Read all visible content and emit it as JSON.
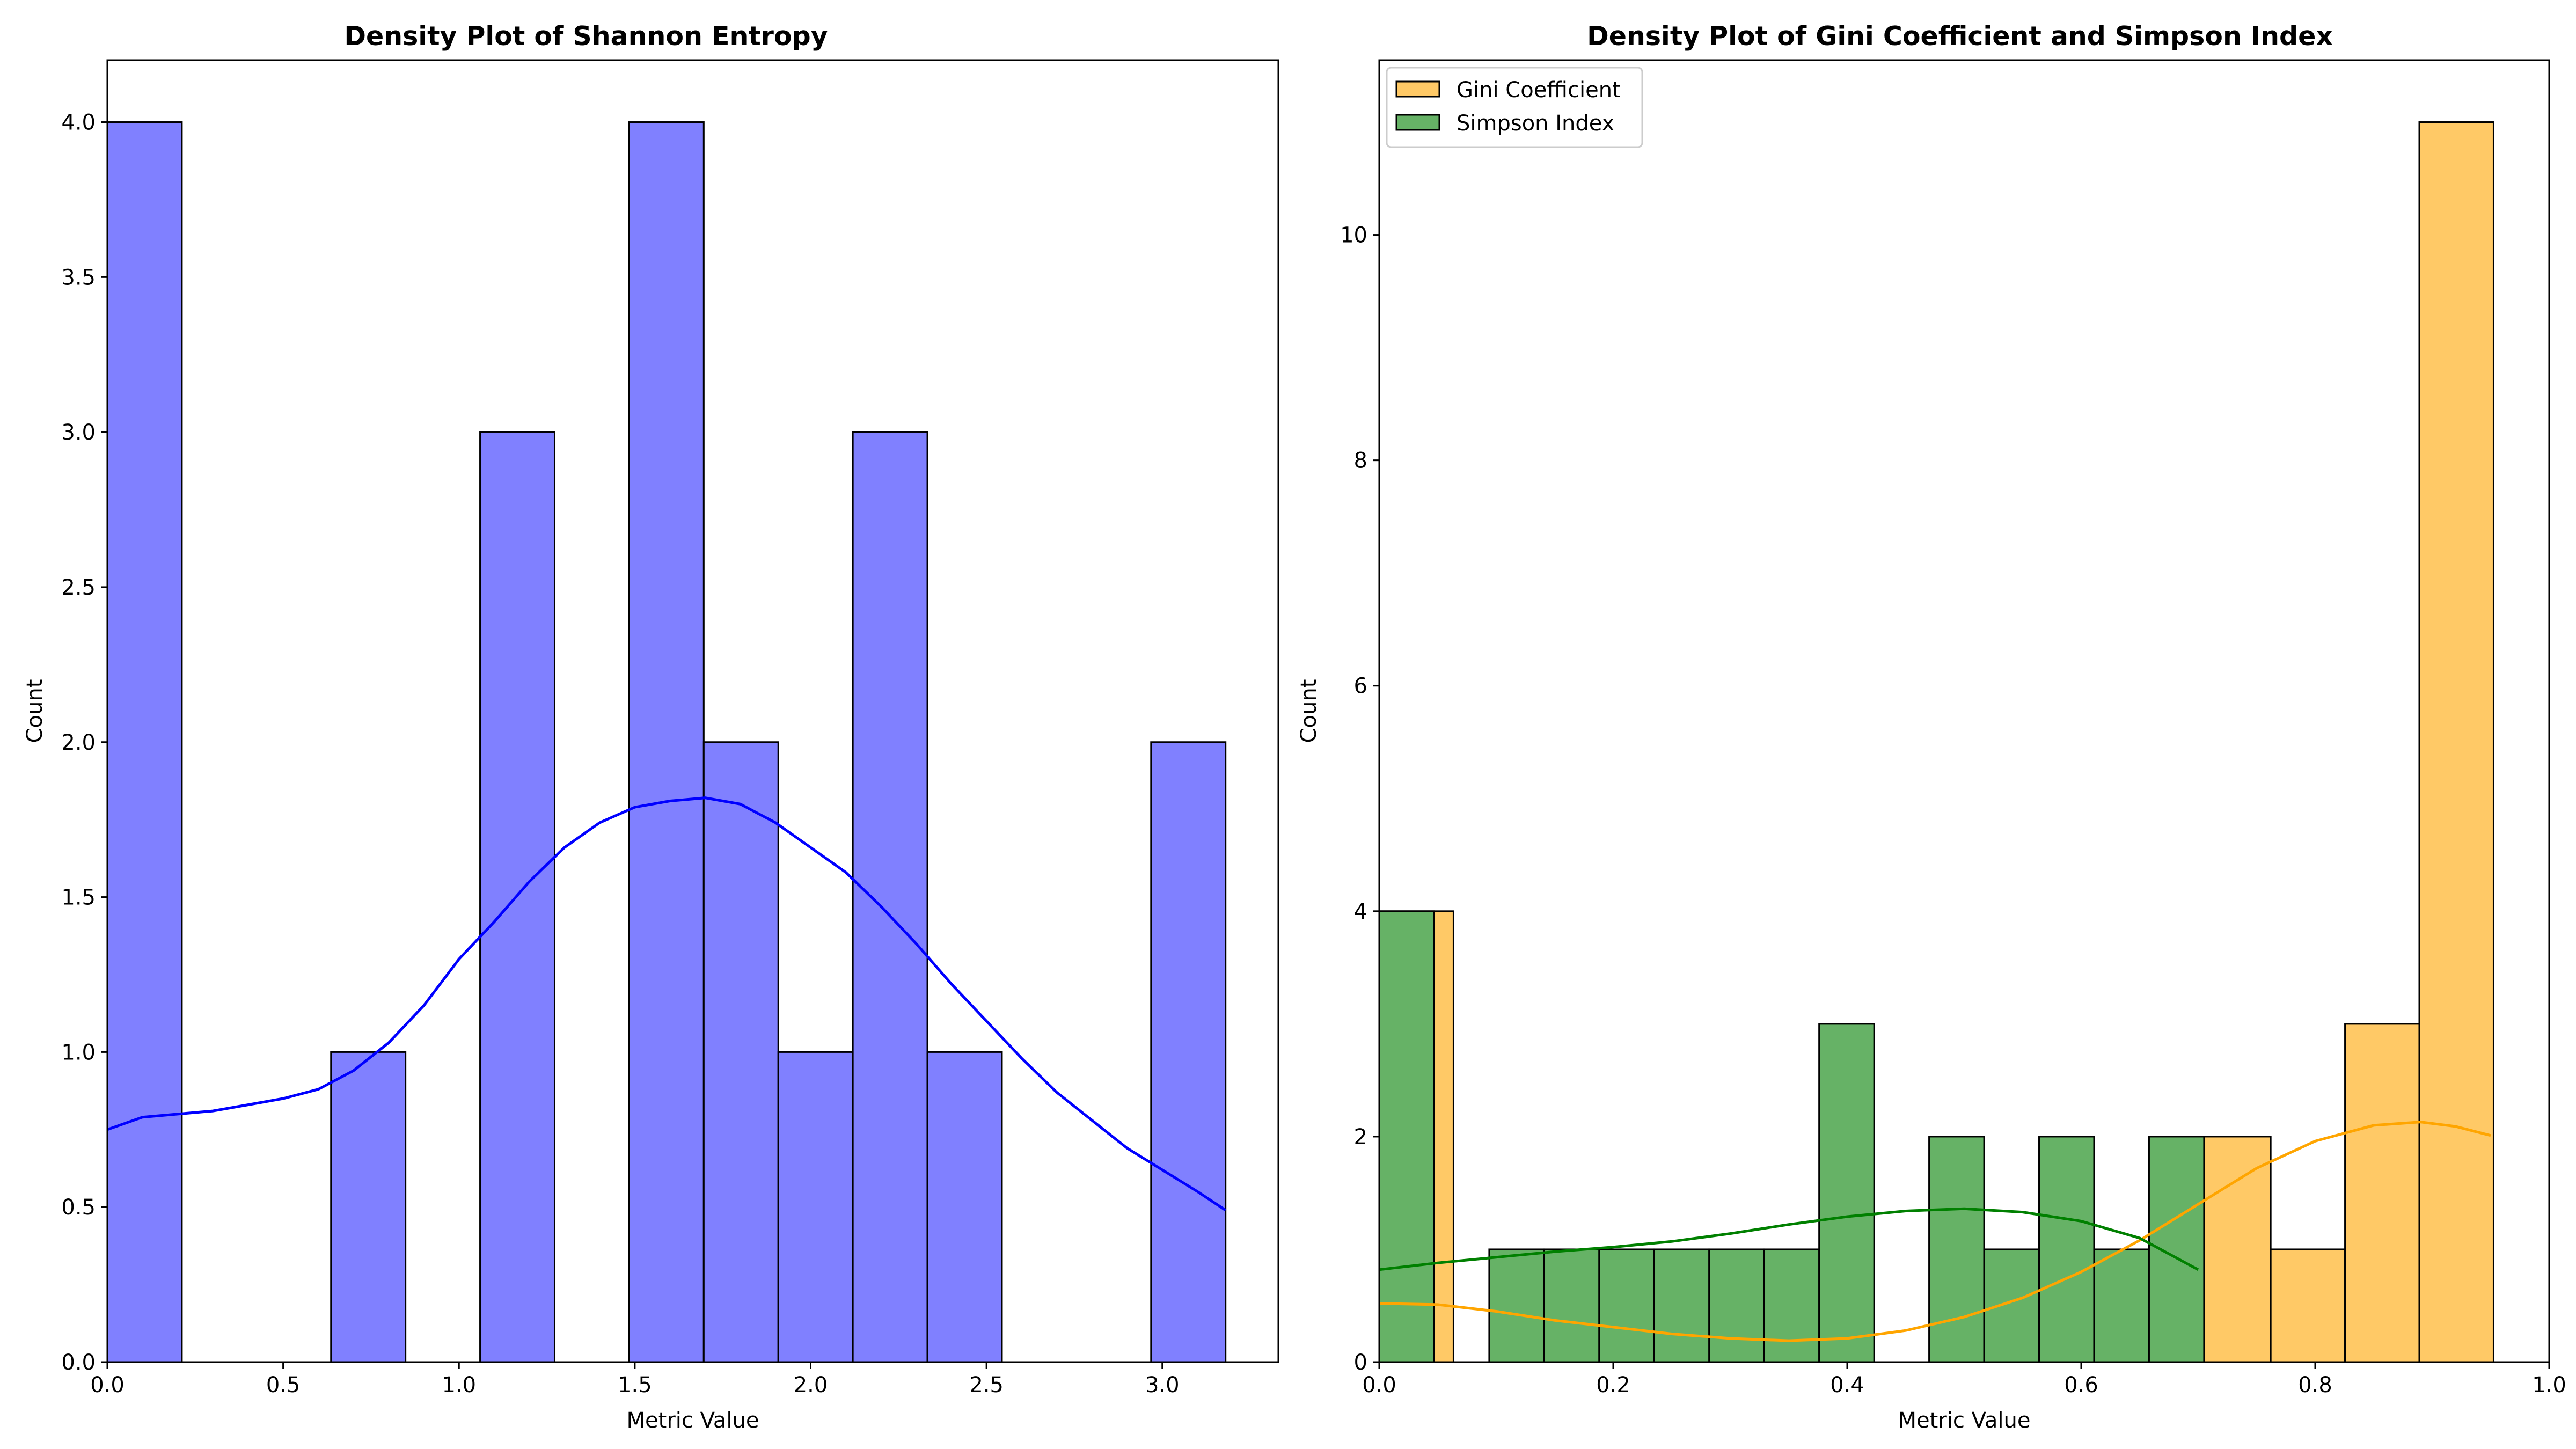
{
  "colors": {
    "shannon_bar": "#8080ff",
    "shannon_line": "#0000ff",
    "gini_bar": "#ffc966",
    "gini_line": "#ffa500",
    "simpson_bar": "#66b266",
    "simpson_line": "#008000",
    "edge": "#000000"
  },
  "chart_data": [
    {
      "type": "histogram",
      "title": "Density Plot of Shannon Entropy",
      "xlabel": "Metric Value",
      "ylabel": "Count",
      "xlim": [
        0,
        3.33
      ],
      "ylim": [
        0,
        4.2
      ],
      "xticks": [
        "0.0",
        "0.5",
        "1.0",
        "1.5",
        "2.0",
        "2.5",
        "3.0"
      ],
      "yticks": [
        "0.0",
        "0.5",
        "1.0",
        "1.5",
        "2.0",
        "2.5",
        "3.0",
        "3.5",
        "4.0"
      ],
      "bin_width": 0.212,
      "series": [
        {
          "color_key": "shannon",
          "bins": [
            {
              "x0": 0.0,
              "count": 4
            },
            {
              "x0": 0.636,
              "count": 1
            },
            {
              "x0": 1.06,
              "count": 3
            },
            {
              "x0": 1.484,
              "count": 4
            },
            {
              "x0": 1.696,
              "count": 2
            },
            {
              "x0": 1.908,
              "count": 1
            },
            {
              "x0": 2.12,
              "count": 3
            },
            {
              "x0": 2.332,
              "count": 1
            },
            {
              "x0": 2.968,
              "count": 2
            }
          ],
          "kde": [
            [
              0.0,
              0.75
            ],
            [
              0.1,
              0.79
            ],
            [
              0.2,
              0.8
            ],
            [
              0.3,
              0.81
            ],
            [
              0.4,
              0.83
            ],
            [
              0.5,
              0.85
            ],
            [
              0.6,
              0.88
            ],
            [
              0.7,
              0.94
            ],
            [
              0.8,
              1.03
            ],
            [
              0.9,
              1.15
            ],
            [
              1.0,
              1.3
            ],
            [
              1.1,
              1.42
            ],
            [
              1.2,
              1.55
            ],
            [
              1.3,
              1.66
            ],
            [
              1.4,
              1.74
            ],
            [
              1.5,
              1.79
            ],
            [
              1.6,
              1.81
            ],
            [
              1.7,
              1.82
            ],
            [
              1.8,
              1.8
            ],
            [
              1.9,
              1.74
            ],
            [
              2.0,
              1.66
            ],
            [
              2.1,
              1.58
            ],
            [
              2.2,
              1.47
            ],
            [
              2.3,
              1.35
            ],
            [
              2.4,
              1.22
            ],
            [
              2.5,
              1.1
            ],
            [
              2.6,
              0.98
            ],
            [
              2.7,
              0.87
            ],
            [
              2.8,
              0.78
            ],
            [
              2.9,
              0.69
            ],
            [
              3.0,
              0.62
            ],
            [
              3.1,
              0.55
            ],
            [
              3.18,
              0.49
            ]
          ]
        }
      ]
    },
    {
      "type": "histogram",
      "title": "Density Plot of Gini Coefficient and Simpson Index",
      "xlabel": "Metric Value",
      "ylabel": "Count",
      "xlim": [
        0,
        1.0
      ],
      "ylim": [
        0,
        11.55
      ],
      "xticks": [
        "0.0",
        "0.2",
        "0.4",
        "0.6",
        "0.8",
        "1.0"
      ],
      "yticks": [
        "0",
        "2",
        "4",
        "6",
        "8",
        "10"
      ],
      "legend": {
        "position": "upper-left",
        "entries": [
          "Gini Coefficient",
          "Simpson Index"
        ]
      },
      "series": [
        {
          "name": "Gini Coefficient",
          "color_key": "gini",
          "bin_width": 0.0635,
          "bins": [
            {
              "x0": 0.0,
              "count": 4
            },
            {
              "x0": 0.6985,
              "count": 2
            },
            {
              "x0": 0.762,
              "count": 1
            },
            {
              "x0": 0.8255,
              "count": 3
            },
            {
              "x0": 0.889,
              "count": 11
            }
          ],
          "kde": [
            [
              0.0,
              0.52
            ],
            [
              0.05,
              0.51
            ],
            [
              0.1,
              0.45
            ],
            [
              0.15,
              0.37
            ],
            [
              0.2,
              0.31
            ],
            [
              0.25,
              0.25
            ],
            [
              0.3,
              0.21
            ],
            [
              0.35,
              0.19
            ],
            [
              0.4,
              0.21
            ],
            [
              0.45,
              0.28
            ],
            [
              0.5,
              0.4
            ],
            [
              0.55,
              0.57
            ],
            [
              0.6,
              0.8
            ],
            [
              0.65,
              1.08
            ],
            [
              0.7,
              1.4
            ],
            [
              0.75,
              1.72
            ],
            [
              0.8,
              1.96
            ],
            [
              0.85,
              2.1
            ],
            [
              0.89,
              2.13
            ],
            [
              0.92,
              2.09
            ],
            [
              0.95,
              2.01
            ]
          ]
        },
        {
          "name": "Simpson Index",
          "color_key": "simpson",
          "bin_width": 0.047,
          "bins": [
            {
              "x0": 0.0,
              "count": 4
            },
            {
              "x0": 0.094,
              "count": 1
            },
            {
              "x0": 0.141,
              "count": 1
            },
            {
              "x0": 0.188,
              "count": 1
            },
            {
              "x0": 0.235,
              "count": 1
            },
            {
              "x0": 0.282,
              "count": 1
            },
            {
              "x0": 0.329,
              "count": 1
            },
            {
              "x0": 0.376,
              "count": 3
            },
            {
              "x0": 0.47,
              "count": 2
            },
            {
              "x0": 0.517,
              "count": 1
            },
            {
              "x0": 0.564,
              "count": 2
            },
            {
              "x0": 0.611,
              "count": 1
            },
            {
              "x0": 0.658,
              "count": 2
            }
          ],
          "kde": [
            [
              0.0,
              0.82
            ],
            [
              0.05,
              0.88
            ],
            [
              0.1,
              0.93
            ],
            [
              0.15,
              0.98
            ],
            [
              0.2,
              1.02
            ],
            [
              0.25,
              1.07
            ],
            [
              0.3,
              1.14
            ],
            [
              0.35,
              1.22
            ],
            [
              0.4,
              1.29
            ],
            [
              0.45,
              1.34
            ],
            [
              0.5,
              1.36
            ],
            [
              0.55,
              1.33
            ],
            [
              0.6,
              1.25
            ],
            [
              0.65,
              1.1
            ],
            [
              0.7,
              0.82
            ]
          ]
        }
      ]
    }
  ]
}
